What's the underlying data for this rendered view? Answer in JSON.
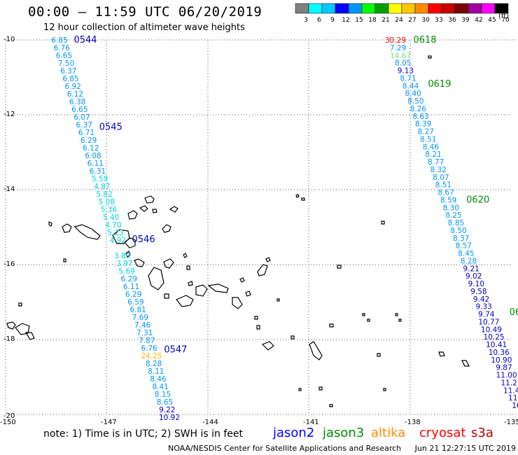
{
  "title": "00:00 – 11:59 UTC 06/20/2019",
  "subtitle": "12 hour collection of altimeter wave heights",
  "note": "note: 1) Time is in UTC; 2) SWH is in feet",
  "credit": "NOAA/NESDIS Center for Satellite Applications and Research",
  "generated": "Jun 21 12:27:15 UTC 2019",
  "satellites": [
    {
      "name": "jason2",
      "color": "#0000ff"
    },
    {
      "name": "jason3",
      "color": "#008c00"
    },
    {
      "name": "altika",
      "color": "#ff8c00"
    },
    {
      "name": "cryosat",
      "color": "#ff0000"
    },
    {
      "name": "s3a",
      "color": "#b40000"
    }
  ],
  "color_scale": {
    "unit": "(ft)",
    "labels": [
      "3",
      "6",
      "9",
      "12",
      "15",
      "18",
      "21",
      "24",
      "27",
      "30",
      "33",
      "36",
      "39",
      "42",
      "45",
      "70"
    ],
    "colors": [
      "#808080",
      "#00ffff",
      "#00c8ff",
      "#0000ff",
      "#0096ff",
      "#00ff00",
      "#00a000",
      "#ffff00",
      "#ffc800",
      "#ff8c00",
      "#ff0000",
      "#c80000",
      "#780000",
      "#a000a0",
      "#ff00ff",
      "#000000"
    ]
  },
  "axes": {
    "lat_labels": [
      "-10",
      "-12",
      "-14",
      "-16",
      "-18",
      "-20"
    ],
    "lon_labels": [
      "-150",
      "-147",
      "-144",
      "-141",
      "-138",
      "-135"
    ]
  },
  "tracks": [
    {
      "time_labels": [
        {
          "text": "0544",
          "lat": -10.0
        },
        {
          "text": "0545",
          "lat": -12.33
        },
        {
          "text": "0546",
          "lat": -15.33
        },
        {
          "text": "0547",
          "lat": -18.27
        }
      ],
      "values": [
        "6.85",
        "6.76",
        "6.65",
        "7.50",
        "6.37",
        "6.85",
        "6.92",
        "6.12",
        "6.38",
        "6.65",
        "6.07",
        "6.37",
        "6.71",
        "6.29",
        "6.12",
        "6.08",
        "6.11",
        "6.31",
        "5.59",
        "4.87",
        "5.82",
        "5.08",
        "5.36",
        "5.40",
        "4.70",
        "5.23",
        "4.92",
        "",
        "3.80",
        "3.97",
        "5.69",
        "6.29",
        "6.11",
        "6.29",
        "6.59",
        "6.81",
        "7.69",
        "7.46",
        "7.31",
        "7.87",
        "6.76",
        "24.25",
        "8.28",
        "8.11",
        "8.46",
        "8.41",
        "8.15",
        "8.65",
        "9.22",
        "10.92"
      ]
    },
    {
      "time_labels": [
        {
          "text": "0618",
          "lat": -10.0
        },
        {
          "text": "0619",
          "lat": -11.18
        },
        {
          "text": "0620",
          "lat": -14.27
        },
        {
          "text": "06",
          "lat": -17.27
        }
      ],
      "values": [
        "30.29",
        "7.29",
        "14.67",
        "8.05",
        "9.13",
        "8.71",
        "8.44",
        "8.40",
        "8.50",
        "8.26",
        "8.63",
        "8.39",
        "8.27",
        "8.51",
        "8.46",
        "8.21",
        "8.77",
        "8.32",
        "8.07",
        "8.51",
        "8.67",
        "8.59",
        "8.30",
        "8.25",
        "8.85",
        "8.50",
        "8.37",
        "8.57",
        "8.45",
        "8.28",
        "9.21",
        "9.02",
        "9.10",
        "9.58",
        "9.42",
        "9.33",
        "9.74",
        "10.77",
        "10.49",
        "10.25",
        "10.41",
        "10.36",
        "10.90",
        "9.87",
        "11.00",
        "11.2",
        "11.4",
        "11.",
        "10"
      ]
    }
  ]
}
